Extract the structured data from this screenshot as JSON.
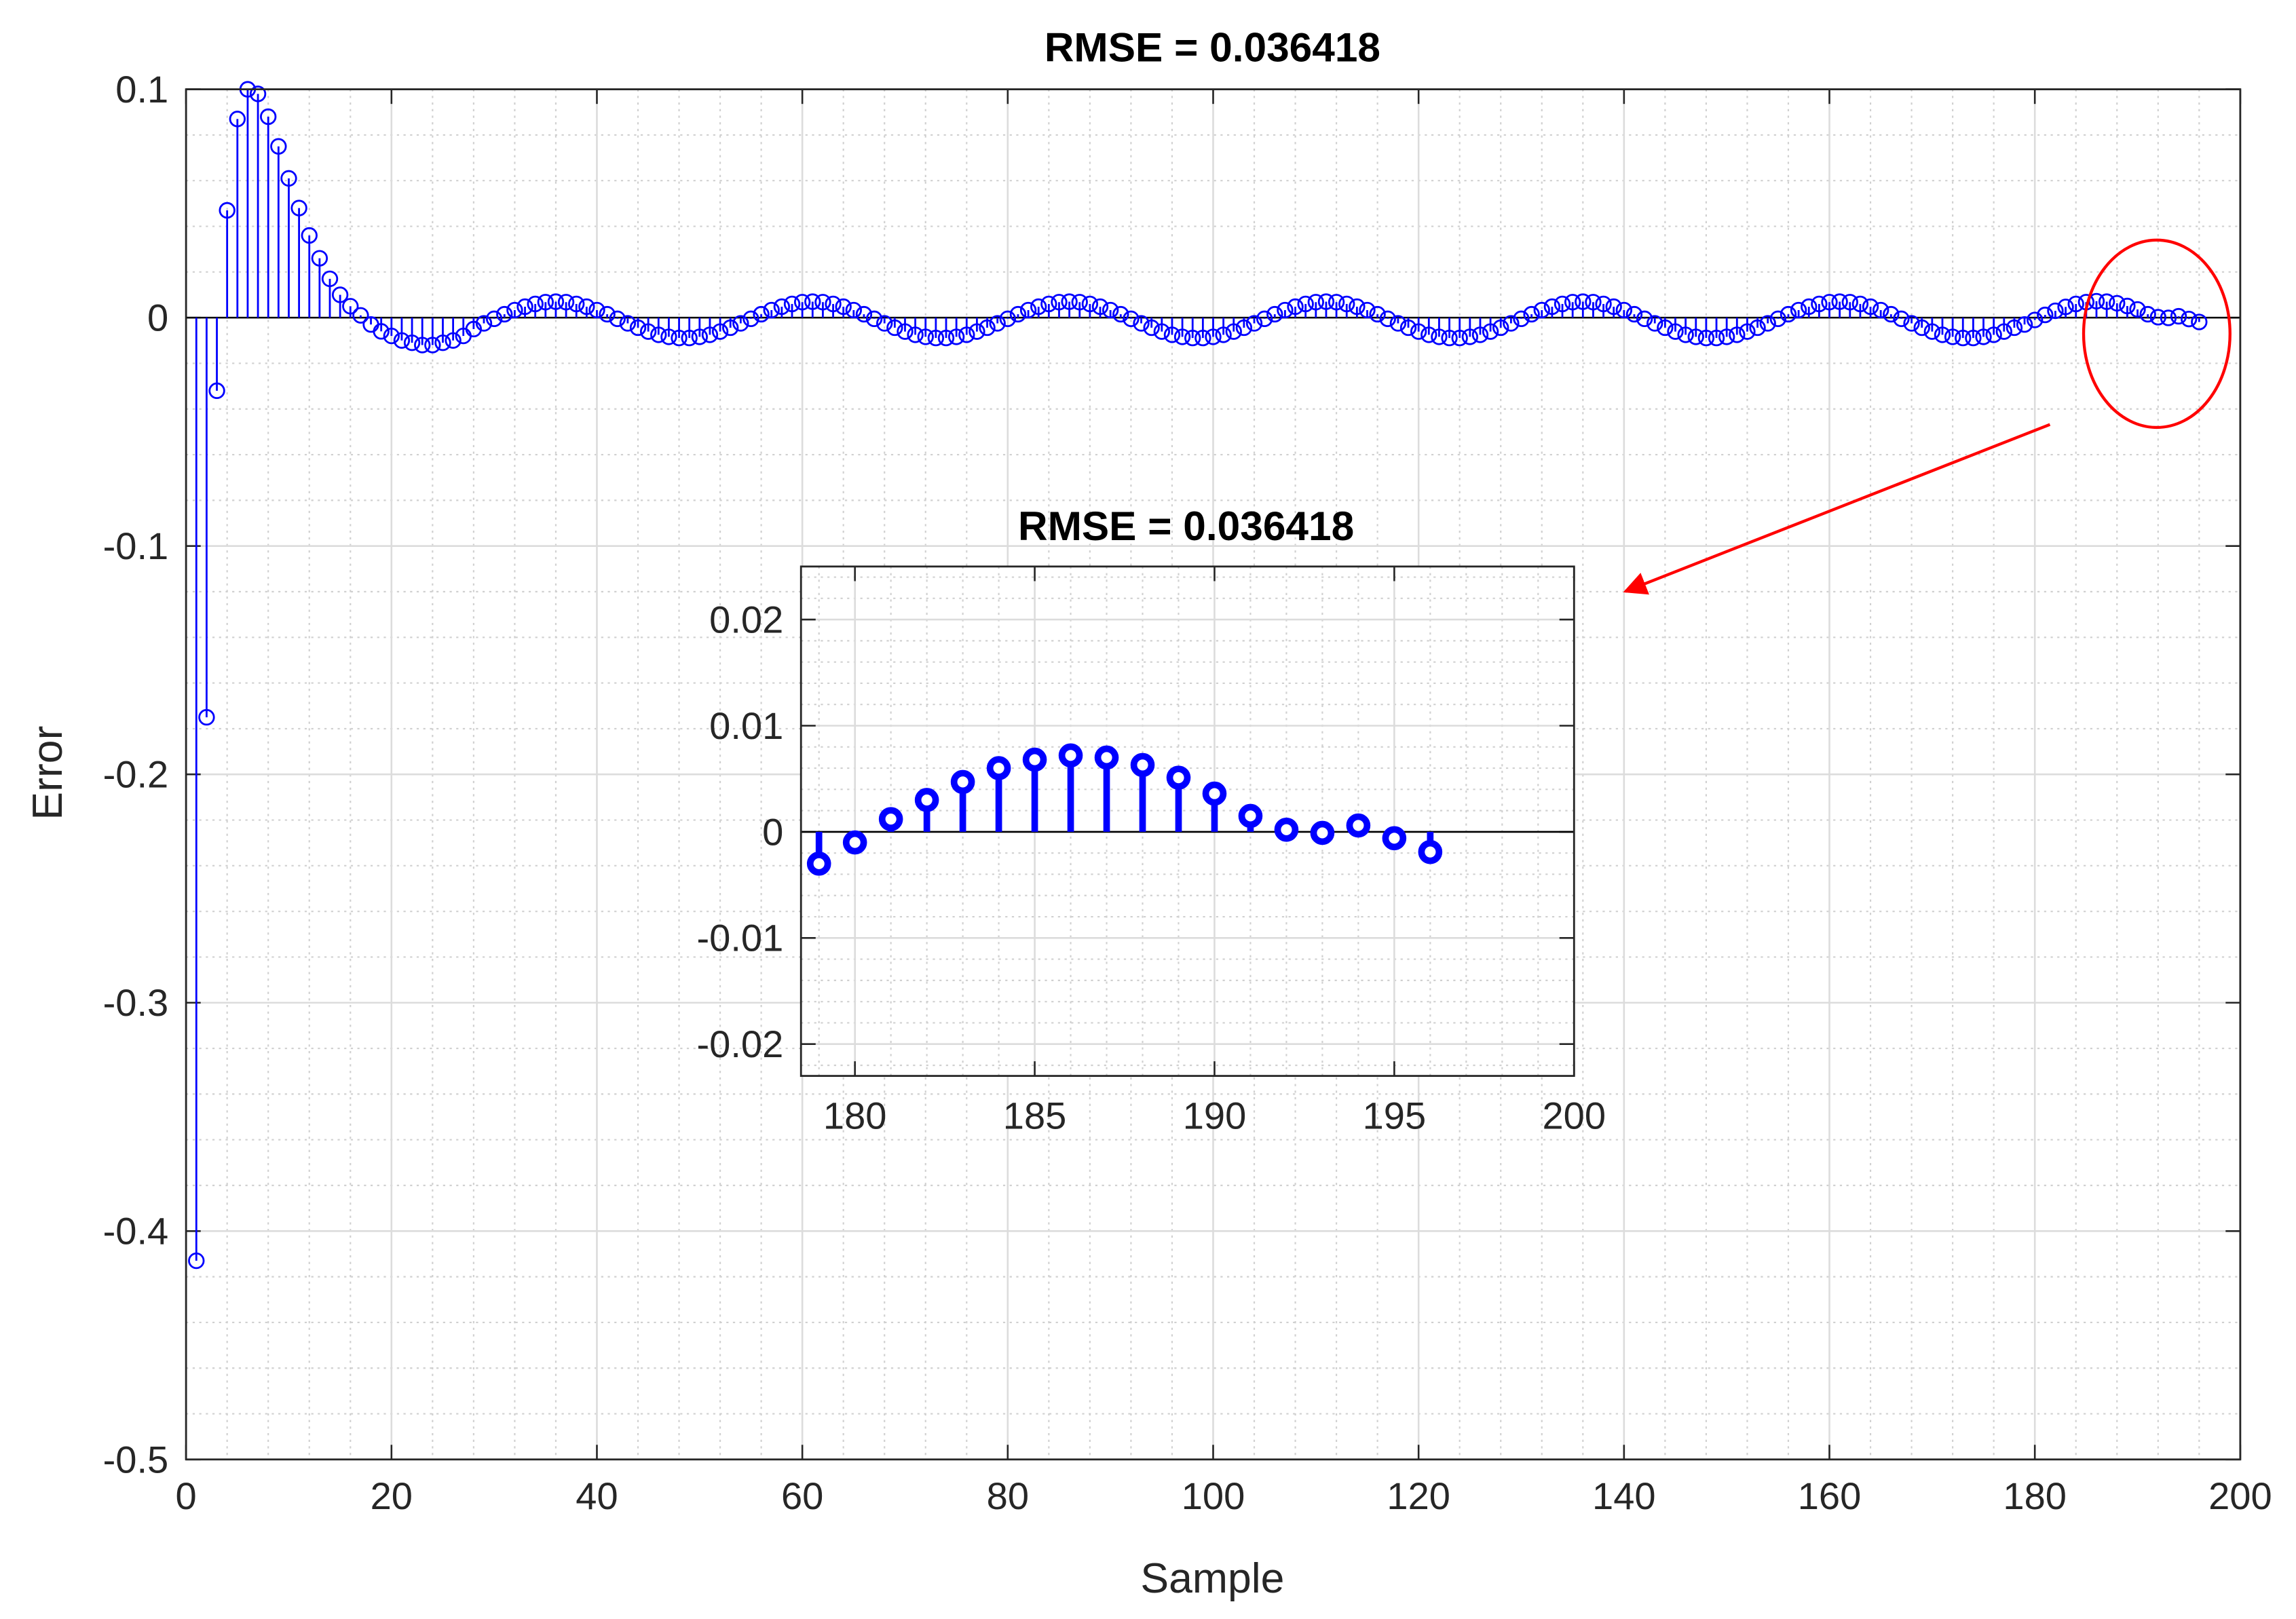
{
  "chart_data": [
    {
      "type": "stem",
      "title": "RMSE = 0.036418",
      "xlabel": "Sample",
      "ylabel": "Error",
      "xlim": [
        0,
        200
      ],
      "ylim": [
        -0.5,
        0.1
      ],
      "xticks": [
        0,
        20,
        40,
        60,
        80,
        100,
        120,
        140,
        160,
        180,
        200
      ],
      "yticks": [
        -0.5,
        -0.4,
        -0.3,
        -0.2,
        -0.1,
        0,
        0.1
      ],
      "grid": true,
      "minor_grid": true,
      "series": [
        {
          "color": "#0000ff",
          "x": [
            1,
            2,
            3,
            4,
            5,
            6,
            7,
            8,
            9,
            10,
            11,
            12,
            13,
            14,
            15,
            16,
            17,
            18,
            19,
            20,
            21,
            22,
            23,
            24,
            25,
            26,
            27,
            28,
            29,
            30,
            31,
            32,
            33,
            34,
            35,
            36,
            37,
            38,
            39,
            40,
            41,
            42,
            43,
            44,
            45,
            46,
            47,
            48,
            49,
            50,
            51,
            52,
            53,
            54,
            55,
            56,
            57,
            58,
            59,
            60,
            61,
            62,
            63,
            64,
            65,
            66,
            67,
            68,
            69,
            70,
            71,
            72,
            73,
            74,
            75,
            76,
            77,
            78,
            79,
            80,
            81,
            82,
            83,
            84,
            85,
            86,
            87,
            88,
            89,
            90,
            91,
            92,
            93,
            94,
            95,
            96,
            97,
            98,
            99,
            100,
            101,
            102,
            103,
            104,
            105,
            106,
            107,
            108,
            109,
            110,
            111,
            112,
            113,
            114,
            115,
            116,
            117,
            118,
            119,
            120,
            121,
            122,
            123,
            124,
            125,
            126,
            127,
            128,
            129,
            130,
            131,
            132,
            133,
            134,
            135,
            136,
            137,
            138,
            139,
            140,
            141,
            142,
            143,
            144,
            145,
            146,
            147,
            148,
            149,
            150,
            151,
            152,
            153,
            154,
            155,
            156,
            157,
            158,
            159,
            160,
            161,
            162,
            163,
            164,
            165,
            166,
            167,
            168,
            169,
            170,
            171,
            172,
            173,
            174,
            175,
            176,
            177,
            178,
            179,
            180,
            181,
            182,
            183,
            184,
            185,
            186,
            187,
            188,
            189,
            190,
            191,
            192,
            193,
            194,
            195,
            196
          ],
          "values": [
            -0.413,
            -0.175,
            -0.032,
            0.047,
            0.087,
            0.1,
            0.098,
            0.088,
            0.075,
            0.061,
            0.048,
            0.036,
            0.026,
            0.017,
            0.01,
            0.005,
            0.001,
            -0.003,
            -0.006,
            -0.008,
            -0.01,
            -0.011,
            -0.012,
            -0.012,
            -0.011,
            -0.01,
            -0.008,
            -0.005,
            -0.0025,
            -0.0005,
            0.0015,
            0.0033,
            0.0048,
            0.006,
            0.0068,
            0.007,
            0.0068,
            0.006,
            0.0048,
            0.0033,
            0.0015,
            -0.0005,
            -0.0025,
            -0.0044,
            -0.0061,
            -0.0075,
            -0.0084,
            -0.0089,
            -0.0089,
            -0.0084,
            -0.0075,
            -0.0061,
            -0.0044,
            -0.0025,
            -0.0005,
            0.0015,
            0.0033,
            0.0048,
            0.006,
            0.0068,
            0.007,
            0.0068,
            0.006,
            0.0048,
            0.0033,
            0.0015,
            -0.0005,
            -0.0025,
            -0.0044,
            -0.0061,
            -0.0075,
            -0.0084,
            -0.0089,
            -0.0089,
            -0.0084,
            -0.0075,
            -0.0061,
            -0.0044,
            -0.0025,
            -0.0005,
            0.0015,
            0.0033,
            0.0048,
            0.006,
            0.0068,
            0.007,
            0.0068,
            0.006,
            0.0048,
            0.0033,
            0.0015,
            -0.0005,
            -0.0025,
            -0.0044,
            -0.0061,
            -0.0075,
            -0.0084,
            -0.0089,
            -0.0089,
            -0.0084,
            -0.0075,
            -0.0061,
            -0.0044,
            -0.0025,
            -0.0005,
            0.0015,
            0.0033,
            0.0048,
            0.006,
            0.0068,
            0.007,
            0.0068,
            0.006,
            0.0048,
            0.0033,
            0.0015,
            -0.0005,
            -0.0025,
            -0.0044,
            -0.0061,
            -0.0075,
            -0.0084,
            -0.0089,
            -0.0089,
            -0.0084,
            -0.0075,
            -0.0061,
            -0.0044,
            -0.0025,
            -0.0005,
            0.0015,
            0.0033,
            0.0048,
            0.006,
            0.0068,
            0.007,
            0.0068,
            0.006,
            0.0048,
            0.0033,
            0.0015,
            -0.0005,
            -0.0025,
            -0.0044,
            -0.0061,
            -0.0075,
            -0.0084,
            -0.0089,
            -0.0089,
            -0.0084,
            -0.0075,
            -0.0061,
            -0.0044,
            -0.0025,
            -0.0005,
            0.0015,
            0.0033,
            0.0048,
            0.006,
            0.0068,
            0.007,
            0.0068,
            0.006,
            0.0048,
            0.0033,
            0.0015,
            -0.0005,
            -0.0025,
            -0.0044,
            -0.0061,
            -0.0075,
            -0.0084,
            -0.0089,
            -0.0089,
            -0.0084,
            -0.0075,
            -0.0061,
            -0.0044,
            -0.003,
            -0.001,
            0.0012,
            0.003,
            0.0047,
            0.006,
            0.0068,
            0.0072,
            0.007,
            0.0063,
            0.0051,
            0.0036,
            0.0015,
            0.0002,
            -0.0001,
            0.0006,
            -0.0006,
            -0.0019
          ]
        }
      ]
    },
    {
      "type": "stem",
      "title": "RMSE = 0.036418",
      "xlim": [
        178.5,
        200
      ],
      "ylim": [
        -0.023,
        0.025
      ],
      "xticks": [
        180,
        185,
        190,
        195,
        200
      ],
      "yticks": [
        -0.02,
        -0.01,
        0,
        0.01,
        0.02
      ],
      "grid": true,
      "minor_grid": true,
      "series": [
        {
          "color": "#0000ff",
          "x": [
            179,
            180,
            181,
            182,
            183,
            184,
            185,
            186,
            187,
            188,
            189,
            190,
            191,
            192,
            193,
            194,
            195,
            196
          ],
          "values": [
            -0.003,
            -0.001,
            0.0012,
            0.003,
            0.0047,
            0.006,
            0.0068,
            0.0072,
            0.007,
            0.0063,
            0.0051,
            0.0036,
            0.0015,
            0.0002,
            -0.0001,
            0.0006,
            -0.0006,
            -0.0019
          ]
        }
      ]
    }
  ]
}
